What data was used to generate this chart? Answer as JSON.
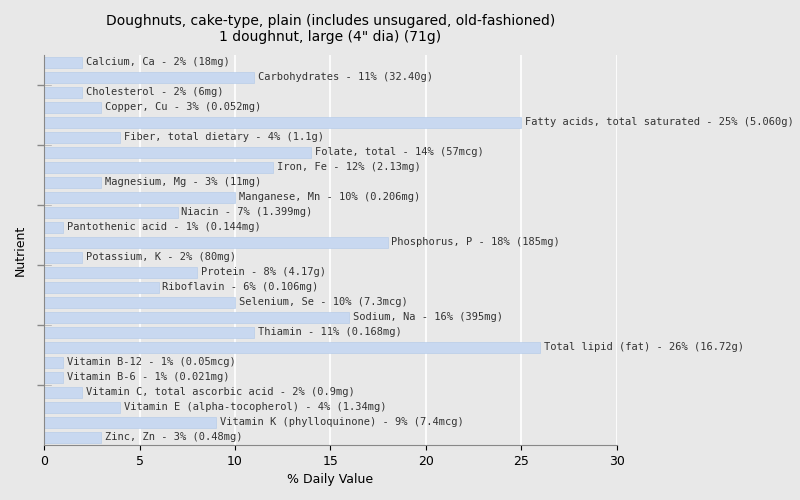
{
  "title": "Doughnuts, cake-type, plain (includes unsugared, old-fashioned)\n1 doughnut, large (4\" dia) (71g)",
  "xlabel": "% Daily Value",
  "ylabel": "Nutrient",
  "background_color": "#e8e8e8",
  "bar_color": "#c8d8f0",
  "bar_edge_color": "#b0c8e8",
  "xlim": [
    0,
    30
  ],
  "nutrients": [
    {
      "label": "Calcium, Ca - 2% (18mg)",
      "value": 2
    },
    {
      "label": "Carbohydrates - 11% (32.40g)",
      "value": 11
    },
    {
      "label": "Cholesterol - 2% (6mg)",
      "value": 2
    },
    {
      "label": "Copper, Cu - 3% (0.052mg)",
      "value": 3
    },
    {
      "label": "Fatty acids, total saturated - 25% (5.060g)",
      "value": 25
    },
    {
      "label": "Fiber, total dietary - 4% (1.1g)",
      "value": 4
    },
    {
      "label": "Folate, total - 14% (57mcg)",
      "value": 14
    },
    {
      "label": "Iron, Fe - 12% (2.13mg)",
      "value": 12
    },
    {
      "label": "Magnesium, Mg - 3% (11mg)",
      "value": 3
    },
    {
      "label": "Manganese, Mn - 10% (0.206mg)",
      "value": 10
    },
    {
      "label": "Niacin - 7% (1.399mg)",
      "value": 7
    },
    {
      "label": "Pantothenic acid - 1% (0.144mg)",
      "value": 1
    },
    {
      "label": "Phosphorus, P - 18% (185mg)",
      "value": 18
    },
    {
      "label": "Potassium, K - 2% (80mg)",
      "value": 2
    },
    {
      "label": "Protein - 8% (4.17g)",
      "value": 8
    },
    {
      "label": "Riboflavin - 6% (0.106mg)",
      "value": 6
    },
    {
      "label": "Selenium, Se - 10% (7.3mcg)",
      "value": 10
    },
    {
      "label": "Sodium, Na - 16% (395mg)",
      "value": 16
    },
    {
      "label": "Thiamin - 11% (0.168mg)",
      "value": 11
    },
    {
      "label": "Total lipid (fat) - 26% (16.72g)",
      "value": 26
    },
    {
      "label": "Vitamin B-12 - 1% (0.05mcg)",
      "value": 1
    },
    {
      "label": "Vitamin B-6 - 1% (0.021mg)",
      "value": 1
    },
    {
      "label": "Vitamin C, total ascorbic acid - 2% (0.9mg)",
      "value": 2
    },
    {
      "label": "Vitamin E (alpha-tocopherol) - 4% (1.34mg)",
      "value": 4
    },
    {
      "label": "Vitamin K (phylloquinone) - 9% (7.4mcg)",
      "value": 9
    },
    {
      "label": "Zinc, Zn - 3% (0.48mg)",
      "value": 3
    }
  ],
  "title_fontsize": 10,
  "label_fontsize": 7.5,
  "axis_label_fontsize": 9,
  "tick_fontsize": 9
}
